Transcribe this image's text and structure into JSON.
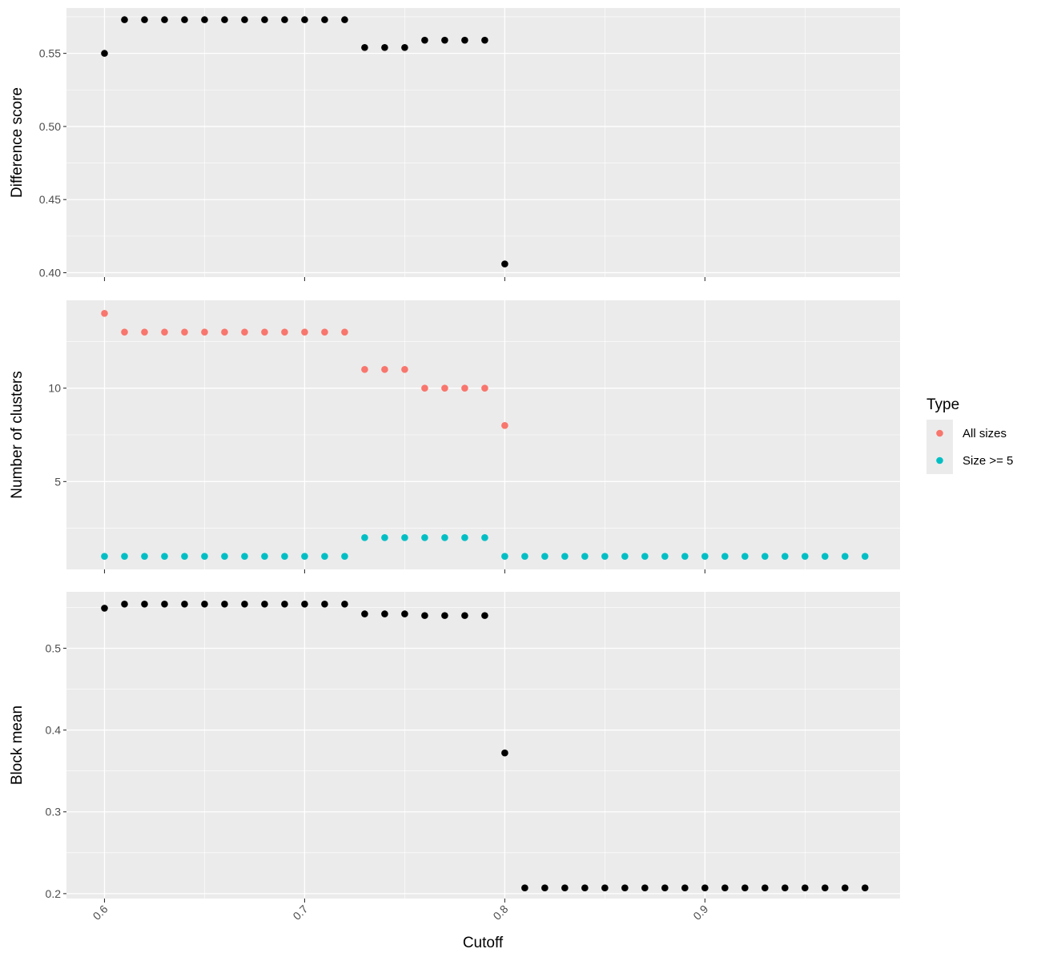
{
  "chart_data": {
    "type": "scatter",
    "xlabel": "Cutoff",
    "x_ticks": [
      0.6,
      0.7,
      0.8,
      0.9
    ],
    "x_tick_labels": [
      "0.6",
      "0.7",
      "0.8",
      "0.9"
    ],
    "xlim": [
      0.581,
      0.9975
    ],
    "colors": {
      "panel_bg": "#ebebeb",
      "grid": "#ffffff",
      "point_black": "#000000",
      "all_sizes": "#f8766d",
      "size_ge_5": "#00bfc4"
    },
    "legend": {
      "title": "Type",
      "position": "right",
      "entries": [
        {
          "label": "All sizes",
          "color": "#f8766d"
        },
        {
          "label": "Size >= 5",
          "color": "#00bfc4"
        }
      ]
    },
    "panels": [
      {
        "ylabel": "Difference score",
        "ylim": [
          0.397,
          0.581
        ],
        "y_ticks": [
          0.4,
          0.45,
          0.5,
          0.55
        ],
        "y_tick_labels": [
          "0.40",
          "0.45",
          "0.50",
          "0.55"
        ],
        "series": [
          {
            "color": "#000000",
            "x": [
              0.6,
              0.61,
              0.62,
              0.63,
              0.64,
              0.65,
              0.66,
              0.67,
              0.68,
              0.69,
              0.7,
              0.71,
              0.72,
              0.73,
              0.74,
              0.75,
              0.76,
              0.77,
              0.78,
              0.79,
              0.8
            ],
            "y": [
              0.55,
              0.573,
              0.573,
              0.573,
              0.573,
              0.573,
              0.573,
              0.573,
              0.573,
              0.573,
              0.573,
              0.573,
              0.573,
              0.554,
              0.554,
              0.554,
              0.559,
              0.559,
              0.559,
              0.559,
              0.406
            ]
          }
        ]
      },
      {
        "ylabel": "Number of clusters",
        "ylim": [
          0.3,
          14.7
        ],
        "y_ticks": [
          5,
          10
        ],
        "y_tick_labels": [
          "5",
          "10"
        ],
        "series": [
          {
            "name": "All sizes",
            "color": "#f8766d",
            "x": [
              0.6,
              0.61,
              0.62,
              0.63,
              0.64,
              0.65,
              0.66,
              0.67,
              0.68,
              0.69,
              0.7,
              0.71,
              0.72,
              0.73,
              0.74,
              0.75,
              0.76,
              0.77,
              0.78,
              0.79,
              0.8
            ],
            "y": [
              14,
              13,
              13,
              13,
              13,
              13,
              13,
              13,
              13,
              13,
              13,
              13,
              13,
              11,
              11,
              11,
              10,
              10,
              10,
              10,
              8
            ]
          },
          {
            "name": "Size >= 5",
            "color": "#00bfc4",
            "x": [
              0.6,
              0.61,
              0.62,
              0.63,
              0.64,
              0.65,
              0.66,
              0.67,
              0.68,
              0.69,
              0.7,
              0.71,
              0.72,
              0.73,
              0.74,
              0.75,
              0.76,
              0.77,
              0.78,
              0.79,
              0.8,
              0.81,
              0.82,
              0.83,
              0.84,
              0.85,
              0.86,
              0.87,
              0.88,
              0.89,
              0.9,
              0.91,
              0.92,
              0.93,
              0.94,
              0.95,
              0.96,
              0.97,
              0.98
            ],
            "y": [
              1,
              1,
              1,
              1,
              1,
              1,
              1,
              1,
              1,
              1,
              1,
              1,
              1,
              2,
              2,
              2,
              2,
              2,
              2,
              2,
              1,
              1,
              1,
              1,
              1,
              1,
              1,
              1,
              1,
              1,
              1,
              1,
              1,
              1,
              1,
              1,
              1,
              1,
              1
            ]
          }
        ]
      },
      {
        "ylabel": "Block mean",
        "ylim": [
          0.194,
          0.569
        ],
        "y_ticks": [
          0.2,
          0.3,
          0.4,
          0.5
        ],
        "y_tick_labels": [
          "0.2",
          "0.3",
          "0.4",
          "0.5"
        ],
        "series": [
          {
            "color": "#000000",
            "x": [
              0.6,
              0.61,
              0.62,
              0.63,
              0.64,
              0.65,
              0.66,
              0.67,
              0.68,
              0.69,
              0.7,
              0.71,
              0.72,
              0.73,
              0.74,
              0.75,
              0.76,
              0.77,
              0.78,
              0.79,
              0.8,
              0.81,
              0.82,
              0.83,
              0.84,
              0.85,
              0.86,
              0.87,
              0.88,
              0.89,
              0.9,
              0.91,
              0.92,
              0.93,
              0.94,
              0.95,
              0.96,
              0.97,
              0.98
            ],
            "y": [
              0.549,
              0.554,
              0.554,
              0.554,
              0.554,
              0.554,
              0.554,
              0.554,
              0.554,
              0.554,
              0.554,
              0.554,
              0.554,
              0.542,
              0.542,
              0.542,
              0.54,
              0.54,
              0.54,
              0.54,
              0.372,
              0.207,
              0.207,
              0.207,
              0.207,
              0.207,
              0.207,
              0.207,
              0.207,
              0.207,
              0.207,
              0.207,
              0.207,
              0.207,
              0.207,
              0.207,
              0.207,
              0.207,
              0.207
            ]
          }
        ]
      }
    ]
  }
}
